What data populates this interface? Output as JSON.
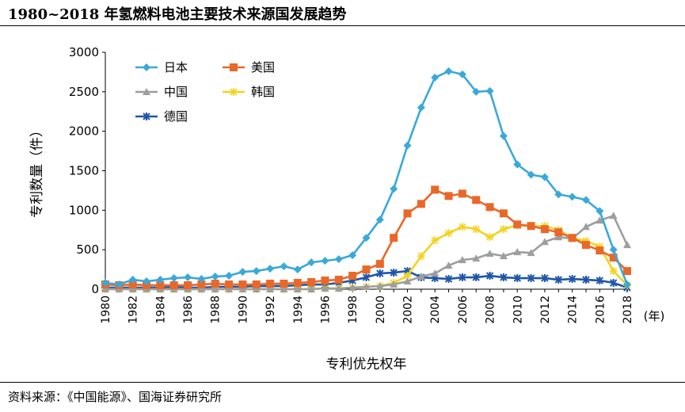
{
  "title": "1980~2018 年氢燃料电池主要技术来源国发展趋势",
  "source": "资料来源：《中国能源》、国海证券研究所",
  "chart_data": {
    "type": "line",
    "xlabel": "专利优先权年",
    "ylabel": "专利数量（件）",
    "x_unit": "(年)",
    "xlim": [
      1980,
      2018
    ],
    "ylim": [
      0,
      3000
    ],
    "yticks": [
      0,
      500,
      1000,
      1500,
      2000,
      2500,
      3000
    ],
    "xticks": [
      1980,
      1982,
      1984,
      1986,
      1988,
      1990,
      1992,
      1994,
      1996,
      1998,
      2000,
      2002,
      2004,
      2006,
      2008,
      2010,
      2012,
      2014,
      2016,
      2018
    ],
    "x": [
      1980,
      1981,
      1982,
      1983,
      1984,
      1985,
      1986,
      1987,
      1988,
      1989,
      1990,
      1991,
      1992,
      1993,
      1994,
      1995,
      1996,
      1997,
      1998,
      1999,
      2000,
      2001,
      2002,
      2003,
      2004,
      2005,
      2006,
      2007,
      2008,
      2009,
      2010,
      2011,
      2012,
      2013,
      2014,
      2015,
      2016,
      2017,
      2018
    ],
    "series": [
      {
        "name": "日本",
        "color": "#3aa9d9",
        "marker": "diamond",
        "values": [
          80,
          60,
          120,
          100,
          120,
          140,
          150,
          130,
          160,
          170,
          220,
          230,
          260,
          290,
          250,
          340,
          360,
          380,
          430,
          650,
          880,
          1270,
          1820,
          2300,
          2680,
          2760,
          2720,
          2500,
          2510,
          1940,
          1580,
          1450,
          1420,
          1200,
          1170,
          1130,
          990,
          500,
          60
        ]
      },
      {
        "name": "美国",
        "color": "#e8682a",
        "marker": "square",
        "values": [
          60,
          50,
          60,
          50,
          50,
          50,
          50,
          60,
          70,
          60,
          60,
          60,
          70,
          70,
          80,
          90,
          110,
          120,
          170,
          250,
          320,
          650,
          960,
          1080,
          1260,
          1180,
          1210,
          1130,
          1040,
          960,
          820,
          800,
          760,
          720,
          650,
          560,
          490,
          400,
          230
        ]
      },
      {
        "name": "中国",
        "color": "#9e9e9e",
        "marker": "triangle",
        "values": [
          0,
          0,
          0,
          0,
          0,
          0,
          0,
          0,
          0,
          0,
          0,
          0,
          0,
          0,
          0,
          0,
          10,
          10,
          20,
          30,
          40,
          60,
          100,
          160,
          200,
          300,
          370,
          390,
          450,
          420,
          470,
          460,
          600,
          660,
          640,
          790,
          870,
          930,
          560
        ]
      },
      {
        "name": "韩国",
        "color": "#f2d31f",
        "marker": "star",
        "values": [
          0,
          0,
          0,
          0,
          0,
          0,
          0,
          0,
          0,
          0,
          0,
          0,
          0,
          0,
          0,
          0,
          10,
          10,
          20,
          30,
          40,
          80,
          170,
          420,
          620,
          710,
          790,
          760,
          660,
          760,
          810,
          800,
          800,
          750,
          650,
          610,
          540,
          230,
          50
        ]
      },
      {
        "name": "德国",
        "color": "#1f56a8",
        "marker": "x",
        "values": [
          20,
          20,
          20,
          20,
          20,
          30,
          20,
          20,
          30,
          30,
          30,
          40,
          40,
          40,
          50,
          60,
          60,
          80,
          110,
          150,
          200,
          210,
          230,
          150,
          140,
          130,
          150,
          150,
          170,
          150,
          140,
          140,
          140,
          120,
          130,
          120,
          110,
          80,
          20
        ]
      }
    ]
  }
}
